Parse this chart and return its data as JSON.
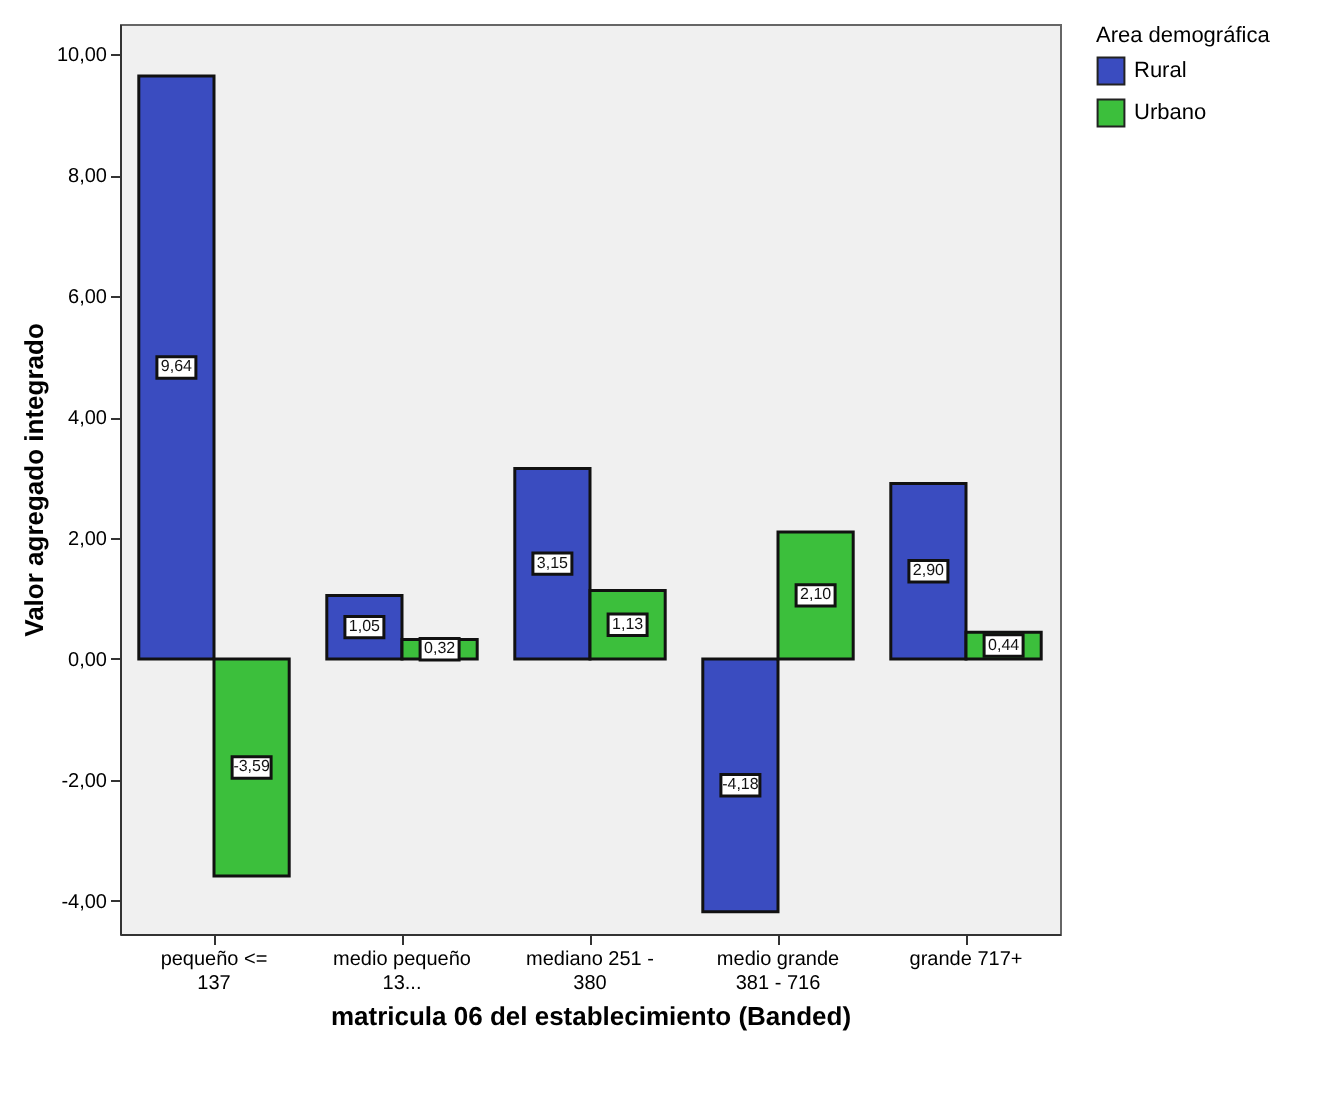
{
  "chart_data": {
    "type": "bar",
    "xlabel": "matricula 06 del establecimiento (Banded)",
    "ylabel": "Valor agregado integrado",
    "legend_title": "Area demográfica",
    "legend": "top right",
    "categories": [
      "pequeño <= 137",
      "medio pequeño 13...",
      "mediano 251 - 380",
      "medio grande 381 - 716",
      "grande 717+"
    ],
    "series": [
      {
        "name": "Rural",
        "color": "#3a4cc0",
        "values": [
          9.64,
          1.05,
          3.15,
          -4.18,
          2.9
        ],
        "value_labels": [
          "9,64",
          "1,05",
          "3,15",
          "-4,18",
          "2,90"
        ]
      },
      {
        "name": "Urbano",
        "color": "#3cbf3c",
        "values": [
          -3.59,
          0.32,
          1.13,
          2.1,
          0.44
        ],
        "value_labels": [
          "-3,59",
          "0,32",
          "1,13",
          "2,10",
          "0,44"
        ]
      }
    ],
    "ylim": [
      -4.55,
      10.5
    ],
    "yticks": [
      {
        "value": -4,
        "label": "-4,00"
      },
      {
        "value": -2,
        "label": "-2,00"
      },
      {
        "value": 0,
        "label": "0,00"
      },
      {
        "value": 2,
        "label": "2,00"
      },
      {
        "value": 4,
        "label": "4,00"
      },
      {
        "value": 6,
        "label": "6,00"
      },
      {
        "value": 8,
        "label": "8,00"
      },
      {
        "value": 10,
        "label": "10,00"
      }
    ]
  }
}
